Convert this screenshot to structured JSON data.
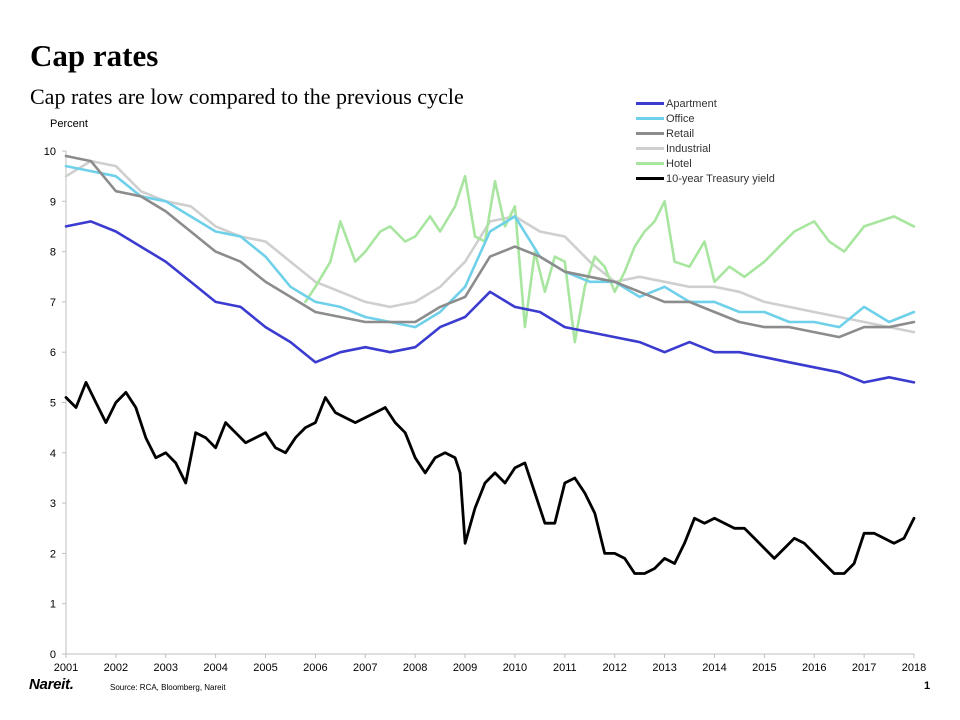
{
  "header": {
    "title": "Cap rates",
    "subtitle": "Cap rates are low compared to the previous cycle"
  },
  "footer": {
    "logo": "Nareit.",
    "source": "Source: RCA, Bloomberg, Nareit",
    "page_number": "1"
  },
  "chart_data": {
    "type": "line",
    "ylabel": "Percent",
    "xlabel": "",
    "ylim": [
      0,
      10
    ],
    "xlim": [
      2001,
      2018
    ],
    "yticks": [
      "0",
      "1",
      "2",
      "3",
      "4",
      "5",
      "6",
      "7",
      "8",
      "9",
      "10"
    ],
    "xticks": [
      "2001",
      "2002",
      "2003",
      "2004",
      "2005",
      "2006",
      "2007",
      "2008",
      "2009",
      "2010",
      "2011",
      "2012",
      "2013",
      "2014",
      "2015",
      "2016",
      "2017",
      "2018"
    ],
    "grid": false,
    "legend_position": "top-right",
    "series": [
      {
        "name": "Apartment",
        "color": "#3b3bd0",
        "x": [
          2001,
          2001.5,
          2002,
          2002.5,
          2003,
          2003.5,
          2004,
          2004.5,
          2005,
          2005.5,
          2006,
          2006.5,
          2007,
          2007.5,
          2008,
          2008.5,
          2009,
          2009.5,
          2010,
          2010.5,
          2011,
          2011.5,
          2012,
          2012.5,
          2013,
          2013.5,
          2014,
          2014.5,
          2015,
          2015.5,
          2016,
          2016.5,
          2017,
          2017.5,
          2018
        ],
        "y": [
          8.5,
          8.6,
          8.4,
          8.1,
          7.8,
          7.4,
          7.0,
          6.9,
          6.5,
          6.2,
          5.8,
          6.0,
          6.1,
          6.0,
          6.1,
          6.5,
          6.7,
          7.2,
          6.9,
          6.8,
          6.5,
          6.4,
          6.3,
          6.2,
          6.0,
          6.2,
          6.0,
          6.0,
          5.9,
          5.8,
          5.7,
          5.6,
          5.4,
          5.5,
          5.4
        ]
      },
      {
        "name": "Office",
        "color": "#6fd0ea",
        "x": [
          2001,
          2001.5,
          2002,
          2002.5,
          2003,
          2003.5,
          2004,
          2004.5,
          2005,
          2005.5,
          2006,
          2006.5,
          2007,
          2007.5,
          2008,
          2008.5,
          2009,
          2009.5,
          2010,
          2010.5,
          2011,
          2011.5,
          2012,
          2012.5,
          2013,
          2013.5,
          2014,
          2014.5,
          2015,
          2015.5,
          2016,
          2016.5,
          2017,
          2017.5,
          2018
        ],
        "y": [
          9.7,
          9.6,
          9.5,
          9.1,
          9.0,
          8.7,
          8.4,
          8.3,
          7.9,
          7.3,
          7.0,
          6.9,
          6.7,
          6.6,
          6.5,
          6.8,
          7.3,
          8.4,
          8.7,
          7.9,
          7.6,
          7.4,
          7.4,
          7.1,
          7.3,
          7.0,
          7.0,
          6.8,
          6.8,
          6.6,
          6.6,
          6.5,
          6.9,
          6.6,
          6.8
        ]
      },
      {
        "name": "Retail",
        "color": "#8c8c8c",
        "x": [
          2001,
          2001.5,
          2002,
          2002.5,
          2003,
          2003.5,
          2004,
          2004.5,
          2005,
          2005.5,
          2006,
          2006.5,
          2007,
          2007.5,
          2008,
          2008.5,
          2009,
          2009.5,
          2010,
          2010.5,
          2011,
          2011.5,
          2012,
          2012.5,
          2013,
          2013.5,
          2014,
          2014.5,
          2015,
          2015.5,
          2016,
          2016.5,
          2017,
          2017.5,
          2018
        ],
        "y": [
          9.9,
          9.8,
          9.2,
          9.1,
          8.8,
          8.4,
          8.0,
          7.8,
          7.4,
          7.1,
          6.8,
          6.7,
          6.6,
          6.6,
          6.6,
          6.9,
          7.1,
          7.9,
          8.1,
          7.9,
          7.6,
          7.5,
          7.4,
          7.2,
          7.0,
          7.0,
          6.8,
          6.6,
          6.5,
          6.5,
          6.4,
          6.3,
          6.5,
          6.5,
          6.6
        ]
      },
      {
        "name": "Industrial",
        "color": "#cfcfcf",
        "x": [
          2001,
          2001.5,
          2002,
          2002.5,
          2003,
          2003.5,
          2004,
          2004.5,
          2005,
          2005.5,
          2006,
          2006.5,
          2007,
          2007.5,
          2008,
          2008.5,
          2009,
          2009.5,
          2010,
          2010.5,
          2011,
          2011.5,
          2012,
          2012.5,
          2013,
          2013.5,
          2014,
          2014.5,
          2015,
          2015.5,
          2016,
          2016.5,
          2017,
          2017.5,
          2018
        ],
        "y": [
          9.5,
          9.8,
          9.7,
          9.2,
          9.0,
          8.9,
          8.5,
          8.3,
          8.2,
          7.8,
          7.4,
          7.2,
          7.0,
          6.9,
          7.0,
          7.3,
          7.8,
          8.6,
          8.7,
          8.4,
          8.3,
          7.8,
          7.4,
          7.5,
          7.4,
          7.3,
          7.3,
          7.2,
          7.0,
          6.9,
          6.8,
          6.7,
          6.6,
          6.5,
          6.4
        ]
      },
      {
        "name": "Hotel",
        "color": "#a8e6a0",
        "x": [
          2005.8,
          2006,
          2006.3,
          2006.5,
          2006.8,
          2007,
          2007.3,
          2007.5,
          2007.8,
          2008,
          2008.3,
          2008.5,
          2008.8,
          2009,
          2009.2,
          2009.4,
          2009.6,
          2009.8,
          2010,
          2010.2,
          2010.4,
          2010.6,
          2010.8,
          2011,
          2011.2,
          2011.4,
          2011.6,
          2011.8,
          2012,
          2012.2,
          2012.4,
          2012.6,
          2012.8,
          2013,
          2013.2,
          2013.5,
          2013.8,
          2014,
          2014.3,
          2014.6,
          2015,
          2015.3,
          2015.6,
          2016,
          2016.3,
          2016.6,
          2017,
          2017.3,
          2017.6,
          2018
        ],
        "y": [
          7.0,
          7.3,
          7.8,
          8.6,
          7.8,
          8.0,
          8.4,
          8.5,
          8.2,
          8.3,
          8.7,
          8.4,
          8.9,
          9.5,
          8.3,
          8.2,
          9.4,
          8.5,
          8.9,
          6.5,
          8.0,
          7.2,
          7.9,
          7.8,
          6.2,
          7.3,
          7.9,
          7.7,
          7.2,
          7.6,
          8.1,
          8.4,
          8.6,
          9.0,
          7.8,
          7.7,
          8.2,
          7.4,
          7.7,
          7.5,
          7.8,
          8.1,
          8.4,
          8.6,
          8.2,
          8.0,
          8.5,
          8.6,
          8.7,
          8.5
        ]
      },
      {
        "name": "10-year Treasury yield",
        "color": "#000000",
        "x": [
          2001,
          2001.2,
          2001.4,
          2001.6,
          2001.8,
          2002,
          2002.2,
          2002.4,
          2002.6,
          2002.8,
          2003,
          2003.2,
          2003.4,
          2003.6,
          2003.8,
          2004,
          2004.2,
          2004.4,
          2004.6,
          2004.8,
          2005,
          2005.2,
          2005.4,
          2005.6,
          2005.8,
          2006,
          2006.2,
          2006.4,
          2006.6,
          2006.8,
          2007,
          2007.2,
          2007.4,
          2007.6,
          2007.8,
          2008,
          2008.2,
          2008.4,
          2008.6,
          2008.8,
          2008.9,
          2009,
          2009.2,
          2009.4,
          2009.6,
          2009.8,
          2010,
          2010.2,
          2010.4,
          2010.6,
          2010.8,
          2011,
          2011.2,
          2011.4,
          2011.6,
          2011.8,
          2012,
          2012.2,
          2012.4,
          2012.6,
          2012.8,
          2013,
          2013.2,
          2013.4,
          2013.6,
          2013.8,
          2014,
          2014.2,
          2014.4,
          2014.6,
          2014.8,
          2015,
          2015.2,
          2015.4,
          2015.6,
          2015.8,
          2016,
          2016.2,
          2016.4,
          2016.6,
          2016.8,
          2017,
          2017.2,
          2017.4,
          2017.6,
          2017.8,
          2018
        ],
        "y": [
          5.1,
          4.9,
          5.4,
          5.0,
          4.6,
          5.0,
          5.2,
          4.9,
          4.3,
          3.9,
          4.0,
          3.8,
          3.4,
          4.4,
          4.3,
          4.1,
          4.6,
          4.4,
          4.2,
          4.3,
          4.4,
          4.1,
          4.0,
          4.3,
          4.5,
          4.6,
          5.1,
          4.8,
          4.7,
          4.6,
          4.7,
          4.8,
          4.9,
          4.6,
          4.4,
          3.9,
          3.6,
          3.9,
          4.0,
          3.9,
          3.6,
          2.2,
          2.9,
          3.4,
          3.6,
          3.4,
          3.7,
          3.8,
          3.2,
          2.6,
          2.6,
          3.4,
          3.5,
          3.2,
          2.8,
          2.0,
          2.0,
          1.9,
          1.6,
          1.6,
          1.7,
          1.9,
          1.8,
          2.2,
          2.7,
          2.6,
          2.7,
          2.6,
          2.5,
          2.5,
          2.3,
          2.1,
          1.9,
          2.1,
          2.3,
          2.2,
          2.0,
          1.8,
          1.6,
          1.6,
          1.8,
          2.4,
          2.4,
          2.3,
          2.2,
          2.3,
          2.7
        ]
      }
    ]
  }
}
